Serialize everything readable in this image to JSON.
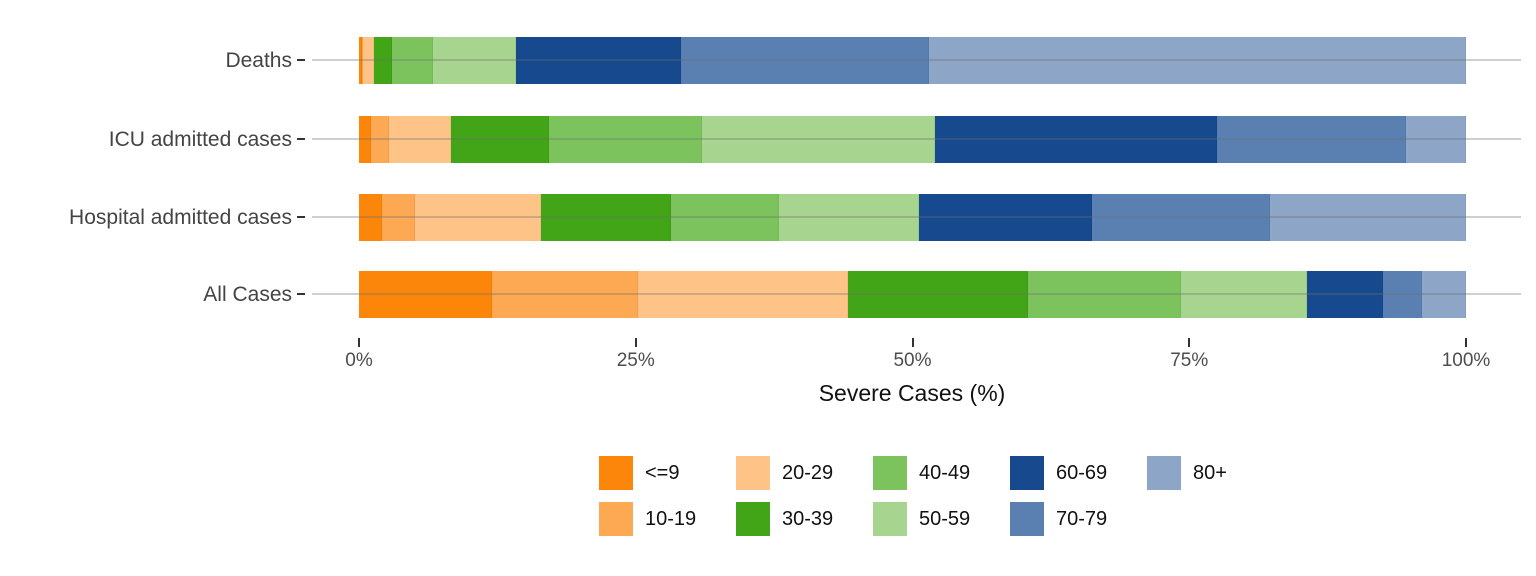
{
  "chart_data": {
    "type": "bar",
    "orientation": "horizontal_stacked",
    "xlabel": "Severe Cases (%)",
    "xlim": [
      0,
      100
    ],
    "x_tick_values": [
      0,
      25,
      50,
      75,
      100
    ],
    "x_tick_labels": [
      "0%",
      "25%",
      "50%",
      "75%",
      "100%"
    ],
    "grid": "horizontal_lines_only",
    "legend_position": "bottom",
    "categories": [
      "Deaths",
      "ICU admitted cases",
      "Hospital admitted cases",
      "All Cases"
    ],
    "age_groups": [
      "<=9",
      "10-19",
      "20-29",
      "30-39",
      "40-49",
      "50-59",
      "60-69",
      "70-79",
      "80+"
    ],
    "colors": {
      "<=9": "#FB860A",
      "10-19": "#FDA853",
      "20-29": "#FEC487",
      "30-39": "#42A417",
      "40-49": "#7CC35D",
      "50-59": "#A7D48E",
      "60-69": "#17498F",
      "70-79": "#5A80B2",
      "80+": "#8DA5C7"
    },
    "series": [
      {
        "name": "<=9",
        "values": [
          0.3,
          1.1,
          2.1,
          12.0
        ]
      },
      {
        "name": "10-19",
        "values": [
          0.1,
          1.6,
          3.0,
          13.2
        ]
      },
      {
        "name": "20-29",
        "values": [
          1.0,
          5.6,
          11.3,
          19.0
        ]
      },
      {
        "name": "30-39",
        "values": [
          1.6,
          8.9,
          11.8,
          16.2
        ]
      },
      {
        "name": "40-49",
        "values": [
          3.7,
          13.8,
          9.7,
          13.9
        ]
      },
      {
        "name": "50-59",
        "values": [
          7.5,
          21.0,
          12.7,
          11.3
        ]
      },
      {
        "name": "60-69",
        "values": [
          14.9,
          25.5,
          15.6,
          6.9
        ]
      },
      {
        "name": "70-79",
        "values": [
          22.4,
          17.1,
          16.1,
          3.5
        ]
      },
      {
        "name": "80+",
        "values": [
          48.5,
          5.4,
          17.7,
          4.0
        ]
      }
    ]
  }
}
